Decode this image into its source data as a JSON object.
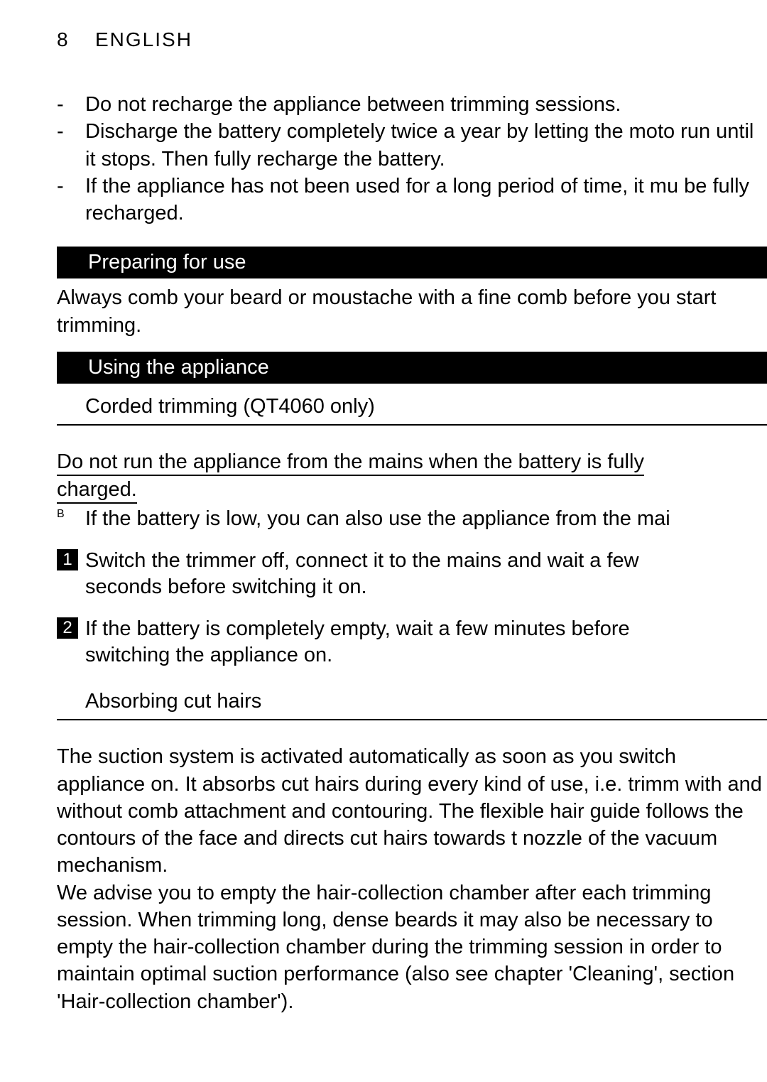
{
  "header": {
    "page_number": "8",
    "language": "ENGLISH"
  },
  "bullets": [
    "Do not recharge the appliance between trimming sessions.",
    "Discharge the battery completely twice a year by letting the moto run until it stops. Then fully recharge the battery.",
    "If the appliance has not been used for a long period of time, it mu be fully recharged."
  ],
  "section_preparing": {
    "title": "Preparing for use",
    "body": "Always comb your beard or moustache with a fine comb before you start trimming."
  },
  "section_using": {
    "title": "Using the appliance",
    "sub1": "Corded trimming (QT4060 only)",
    "warning_line1": "Do not run the appliance from the mains when the battery is fully",
    "warning_line2": "charged.",
    "b_mark": "B",
    "b_note": "If the battery is low, you can also use the appliance from the mai",
    "steps": [
      {
        "n": "1",
        "t": "Switch the trimmer off, connect it to the mains and wait a few seconds before switching it on."
      },
      {
        "n": "2",
        "t": "If the battery is completely empty, wait a few minutes before switching the appliance on."
      }
    ],
    "sub2": "Absorbing cut hairs",
    "absorb_body": "The suction system is activated automatically as soon as you switch appliance on. It absorbs cut hairs during every kind of use, i.e. trimm with and without comb attachment and contouring. The flexible hair guide follows the contours of the face and directs cut hairs towards t nozzle of the vacuum mechanism.\nWe advise you to empty the hair-collection chamber after each trimming session. When trimming long, dense beards it may also be necessary to empty the hair-collection chamber during the trimming session in order to maintain optimal suction performance (also see chapter 'Cleaning', section 'Hair-collection chamber')."
  }
}
